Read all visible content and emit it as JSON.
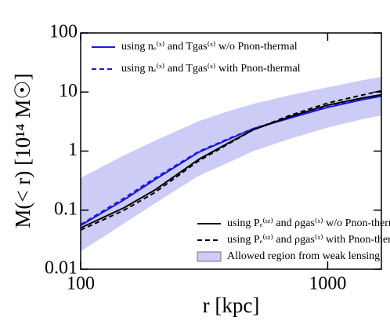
{
  "chart_data": {
    "type": "line",
    "xlabel": "r [kpc]",
    "ylabel": "M(< r) [10¹⁴ M☉]",
    "xscale": "log",
    "yscale": "log",
    "xlim": [
      100,
      1650
    ],
    "ylim": [
      0.01,
      100
    ],
    "xticks": [
      100,
      1000
    ],
    "yticks": [
      0.01,
      0.1,
      1,
      10,
      100
    ],
    "x": [
      100,
      150,
      200,
      300,
      400,
      500,
      700,
      1000,
      1400,
      1650
    ],
    "series": [
      {
        "name": "using nₑ⁽ˣ⁾ and Tgas⁽ˣ⁾ w/o Pnon-thermal",
        "color": "#1a1ad6",
        "dash": false,
        "legend": "upper left",
        "values": [
          0.055,
          0.15,
          0.33,
          0.95,
          1.6,
          2.4,
          3.6,
          5.5,
          7.5,
          8.5
        ]
      },
      {
        "name": "using nₑ⁽ˣ⁾ and Tgas⁽ˣ⁾ with Pnon-thermal",
        "color": "#1a1ad6",
        "dash": true,
        "legend": "upper left",
        "values": [
          0.057,
          0.16,
          0.35,
          0.98,
          1.65,
          2.4,
          3.7,
          5.6,
          7.8,
          9.0
        ]
      },
      {
        "name": "using Pₑ⁽ˢᶻ⁾ and ρgas⁽ˣ⁾ w/o Pnon-thermal",
        "color": "#000000",
        "dash": false,
        "legend": "lower right",
        "values": [
          0.05,
          0.11,
          0.22,
          0.72,
          1.4,
          2.3,
          3.8,
          6.0,
          8.0,
          9.0
        ]
      },
      {
        "name": "using Pₑ⁽ˢᶻ⁾ and ρgas⁽ˣ⁾ with Pnon-thermal",
        "color": "#000000",
        "dash": true,
        "legend": "lower right",
        "values": [
          0.046,
          0.1,
          0.2,
          0.68,
          1.35,
          2.3,
          4.0,
          6.5,
          9.0,
          10.5
        ]
      }
    ],
    "band": {
      "name": "Allowed region from weak lensing",
      "color": "#ccccf7",
      "legend": "lower right",
      "lower": [
        0.02,
        0.06,
        0.13,
        0.38,
        0.65,
        1.0,
        1.6,
        2.5,
        3.5,
        4.0
      ],
      "upper": [
        0.35,
        0.85,
        1.5,
        3.2,
        4.8,
        6.3,
        8.8,
        12,
        16,
        18
      ]
    }
  }
}
